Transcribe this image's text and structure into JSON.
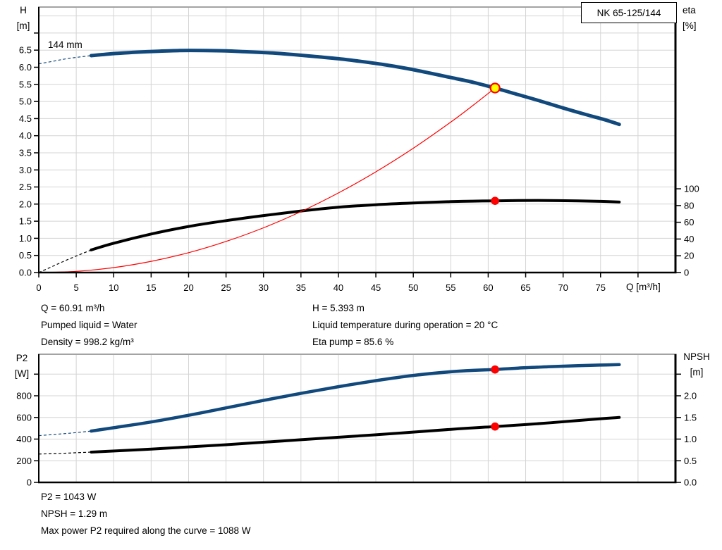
{
  "pump_model": "NK 65-125/144",
  "annotations": {
    "duty_left": [
      "Q = 60.91 m³/h",
      "Pumped liquid = Water",
      "Density = 998.2 kg/m³"
    ],
    "duty_right": [
      "H = 5.393 m",
      "Liquid temperature during operation = 20 °C",
      "Eta pump = 85.6 %"
    ],
    "power": [
      "P2 = 1043 W",
      "NPSH = 1.29 m",
      "Max power P2 required along the curve = 1088 W"
    ]
  },
  "colors": {
    "curve_blue": "#11497D",
    "curve_black": "#000000",
    "system_red": "#FF0000",
    "duty_fill": "#FFFF00",
    "duty_ring": "#FF0000",
    "dot": "#FF0000",
    "grid": "#D4D4D4",
    "border": "#000000",
    "top_border": "#A3A3A3",
    "text": "#000000"
  },
  "chart_data": [
    {
      "type": "line",
      "title_box": "NK 65-125/144",
      "x": {
        "min": 0,
        "max": 85,
        "tick_step": 5,
        "tick_max": 80,
        "label_max": 75,
        "decimals": 0,
        "label": "Q [m³/h]"
      },
      "y_left": {
        "min": 0,
        "max": 7.76,
        "tick_step": 0.5,
        "tick_max": 7.0,
        "label_max": 6.5,
        "decimals": 1,
        "label": "H\n[m]"
      },
      "y_right": {
        "min": 0,
        "max": 317,
        "tick_step": 20,
        "tick_max": 100,
        "label_max": 100,
        "decimals": 0,
        "label": "eta\n[%]"
      },
      "series": [
        {
          "name": "head-curve",
          "label": "144 mm",
          "axis": "left",
          "color": "#11497D",
          "width": 5,
          "dash_points": [
            [
              0,
              6.1
            ],
            [
              2,
              6.18
            ],
            [
              4,
              6.26
            ],
            [
              7,
              6.34
            ]
          ],
          "points": [
            [
              7,
              6.34
            ],
            [
              10,
              6.4
            ],
            [
              13,
              6.44
            ],
            [
              16,
              6.47
            ],
            [
              19,
              6.49
            ],
            [
              22,
              6.49
            ],
            [
              25,
              6.48
            ],
            [
              28,
              6.45
            ],
            [
              31,
              6.42
            ],
            [
              34,
              6.37
            ],
            [
              37,
              6.31
            ],
            [
              40,
              6.25
            ],
            [
              43,
              6.17
            ],
            [
              46,
              6.08
            ],
            [
              49,
              5.97
            ],
            [
              52,
              5.84
            ],
            [
              55,
              5.7
            ],
            [
              58,
              5.56
            ],
            [
              60.91,
              5.393
            ],
            [
              64,
              5.2
            ],
            [
              67,
              5.01
            ],
            [
              70,
              4.81
            ],
            [
              73,
              4.62
            ],
            [
              75.5,
              4.47
            ],
            [
              77.5,
              4.33
            ]
          ]
        },
        {
          "name": "efficiency-curve",
          "axis": "right",
          "color": "#000000",
          "width": 4,
          "dash_points": [
            [
              0,
              0
            ],
            [
              2,
              8
            ],
            [
              4,
              16
            ],
            [
              7,
              27
            ]
          ],
          "points": [
            [
              7,
              27
            ],
            [
              10,
              35
            ],
            [
              15,
              46
            ],
            [
              20,
              55
            ],
            [
              25,
              62
            ],
            [
              30,
              68
            ],
            [
              35,
              73.5
            ],
            [
              40,
              78
            ],
            [
              45,
              81
            ],
            [
              50,
              83
            ],
            [
              55,
              84.7
            ],
            [
              58,
              85.3
            ],
            [
              60.91,
              85.6
            ],
            [
              64,
              86
            ],
            [
              68,
              86
            ],
            [
              72,
              85.6
            ],
            [
              75,
              85
            ],
            [
              77.5,
              84.2
            ]
          ]
        },
        {
          "name": "system-curve",
          "axis": "left",
          "color": "#FF0000",
          "width": 1.2,
          "points": [
            [
              0,
              0
            ],
            [
              5,
              0.036
            ],
            [
              10,
              0.145
            ],
            [
              15,
              0.327
            ],
            [
              20,
              0.581
            ],
            [
              25,
              0.909
            ],
            [
              30,
              1.308
            ],
            [
              35,
              1.781
            ],
            [
              40,
              2.326
            ],
            [
              45,
              2.944
            ],
            [
              50,
              3.634
            ],
            [
              55,
              4.397
            ],
            [
              58,
              4.89
            ],
            [
              60.91,
              5.393
            ]
          ]
        }
      ],
      "markers": [
        {
          "name": "duty-point-head",
          "axis": "left",
          "x": 60.91,
          "y": 5.393,
          "style": "duty"
        },
        {
          "name": "duty-point-eta",
          "axis": "right",
          "x": 60.91,
          "y": 85.6,
          "style": "dot"
        }
      ]
    },
    {
      "type": "line",
      "x": {
        "min": 0,
        "max": 85,
        "tick_step": 5,
        "tick_max": -1,
        "label_max": -1,
        "decimals": 0,
        "label": ""
      },
      "y_left": {
        "min": 0,
        "max": 1184,
        "tick_step": 200,
        "tick_max": 1000,
        "label_max": 800,
        "decimals": 0,
        "label": "P2\n[W]"
      },
      "y_right": {
        "min": 0,
        "max": 2.96,
        "tick_step": 0.5,
        "tick_max": 2.5,
        "label_max": 2.0,
        "decimals": 1,
        "label": "NPSH\n[m]"
      },
      "series": [
        {
          "name": "power-curve",
          "axis": "left",
          "color": "#11497D",
          "width": 4.5,
          "dash_points": [
            [
              0,
              432
            ],
            [
              3,
              448
            ],
            [
              5,
              460
            ],
            [
              7,
              474
            ]
          ],
          "points": [
            [
              7,
              474
            ],
            [
              10,
              505
            ],
            [
              15,
              558
            ],
            [
              20,
              620
            ],
            [
              25,
              688
            ],
            [
              30,
              757
            ],
            [
              35,
              822
            ],
            [
              40,
              884
            ],
            [
              45,
              940
            ],
            [
              50,
              988
            ],
            [
              55,
              1022
            ],
            [
              58,
              1035
            ],
            [
              60.91,
              1043
            ],
            [
              64,
              1056
            ],
            [
              68,
              1068
            ],
            [
              72,
              1078
            ],
            [
              75,
              1084
            ],
            [
              77.5,
              1088
            ]
          ]
        },
        {
          "name": "npsh-curve",
          "axis": "right",
          "color": "#000000",
          "width": 4,
          "dash_points": [
            [
              0,
              0.655
            ],
            [
              3,
              0.67
            ],
            [
              5,
              0.685
            ],
            [
              7,
              0.7
            ]
          ],
          "points": [
            [
              7,
              0.7
            ],
            [
              15,
              0.77
            ],
            [
              25,
              0.87
            ],
            [
              35,
              0.985
            ],
            [
              45,
              1.1
            ],
            [
              55,
              1.225
            ],
            [
              60.91,
              1.29
            ],
            [
              65,
              1.335
            ],
            [
              70,
              1.4
            ],
            [
              75,
              1.47
            ],
            [
              77.5,
              1.5
            ]
          ]
        }
      ],
      "markers": [
        {
          "name": "duty-point-power",
          "axis": "left",
          "x": 60.91,
          "y": 1043,
          "style": "dot"
        },
        {
          "name": "duty-point-npsh",
          "axis": "right",
          "x": 60.91,
          "y": 1.29,
          "style": "dot"
        }
      ]
    }
  ]
}
